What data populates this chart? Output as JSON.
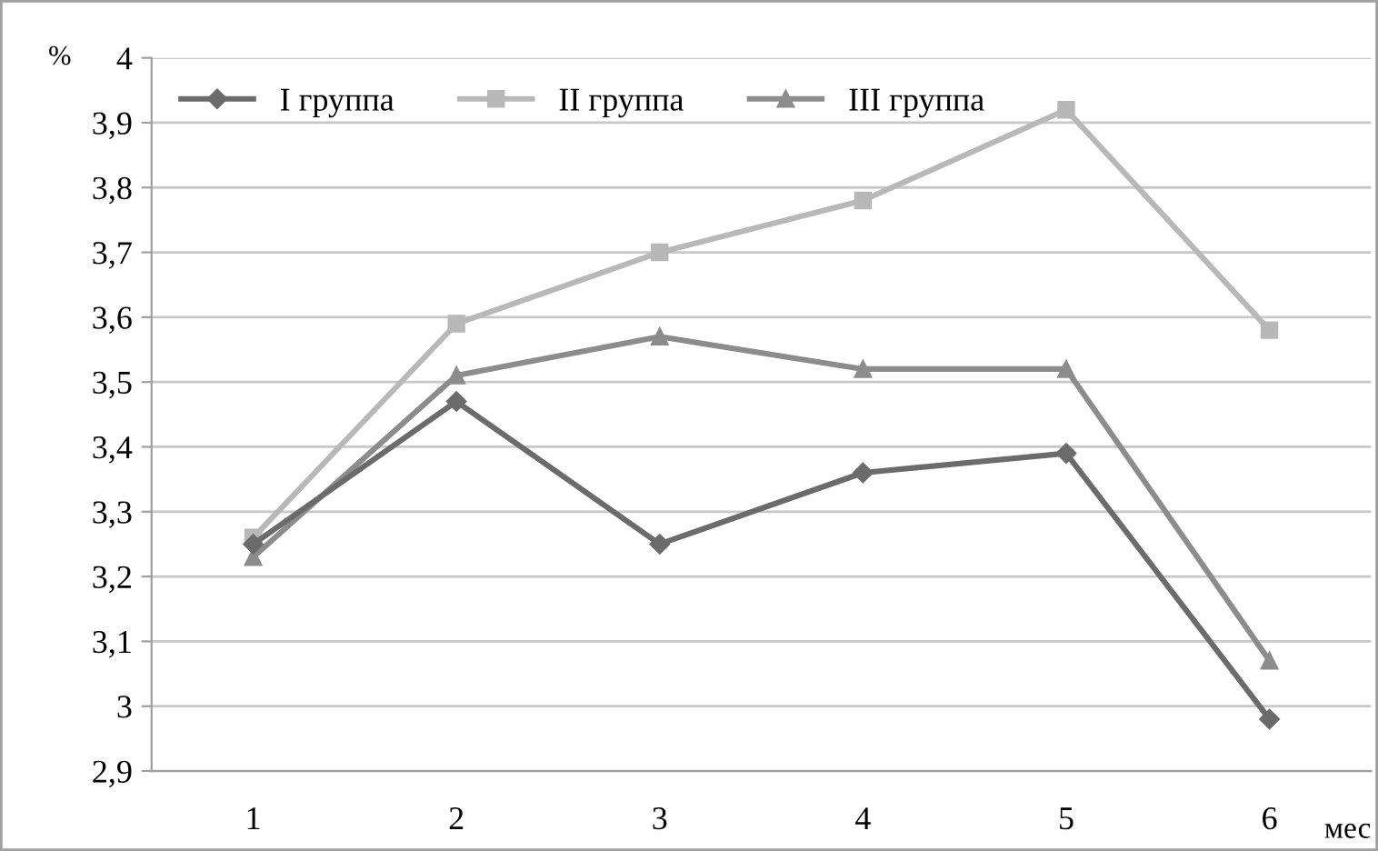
{
  "chart_data": {
    "type": "line",
    "ylabel": "%",
    "xlabel": "мес",
    "categories": [
      "1",
      "2",
      "3",
      "4",
      "5",
      "6"
    ],
    "series": [
      {
        "name": "I группа",
        "color": "#6b6b6b",
        "marker": "diamond",
        "values": [
          3.25,
          3.47,
          3.25,
          3.36,
          3.39,
          2.98
        ]
      },
      {
        "name": "II группа",
        "color": "#b8b8b8",
        "marker": "square",
        "values": [
          3.26,
          3.59,
          3.7,
          3.78,
          3.92,
          3.58
        ]
      },
      {
        "name": "III группа",
        "color": "#8c8c8c",
        "marker": "triangle",
        "values": [
          3.23,
          3.51,
          3.57,
          3.52,
          3.52,
          3.07
        ]
      }
    ],
    "ylim": [
      2.9,
      4
    ],
    "yticks": [
      {
        "value": 2.9,
        "label": "2,9"
      },
      3,
      {
        "value": 3.1,
        "label": "3,1"
      },
      {
        "value": 3.2,
        "label": "3,2"
      },
      {
        "value": 3.3,
        "label": "3,3"
      },
      {
        "value": 3.4,
        "label": "3,4"
      },
      {
        "value": 3.5,
        "label": "3,5"
      },
      {
        "value": 3.6,
        "label": "3,6"
      },
      {
        "value": 3.7,
        "label": "3,7"
      },
      {
        "value": 3.8,
        "label": "3,8"
      },
      {
        "value": 3.9,
        "label": "3,9"
      },
      4
    ],
    "grid": "y",
    "legend": "top left",
    "line_style": "solid"
  }
}
